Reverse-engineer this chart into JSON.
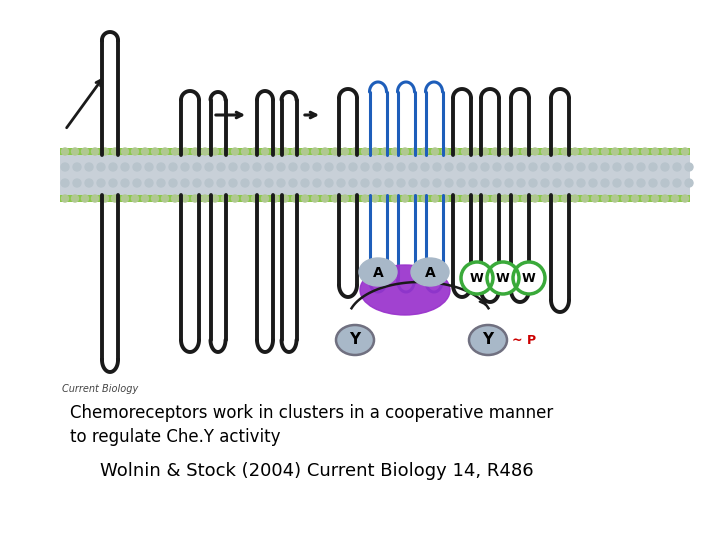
{
  "bg_color": "#ffffff",
  "caption_line1": "Chemoreceptors work in clusters in a cooperative manner",
  "caption_line2": "to regulate Che.Y activity",
  "reference": "Wolnin & Stock (2004) Current Biology 14, R486",
  "watermark": "Current Biology",
  "black_line_color": "#1a1a1a",
  "blue_line_color": "#1e5eba",
  "purple_blob_color": "#9932CC",
  "gray_ball_color": "#a8b8c8",
  "green_circle_color": "#3aaa3a",
  "y_circle_color": "#a8b8c8",
  "red_p_color": "#cc0000",
  "membrane_color_outer": "#8bc84a",
  "membrane_color_inner": "#c8d0d8",
  "caption_fontsize": 12,
  "ref_fontsize": 13,
  "watermark_fontsize": 7
}
